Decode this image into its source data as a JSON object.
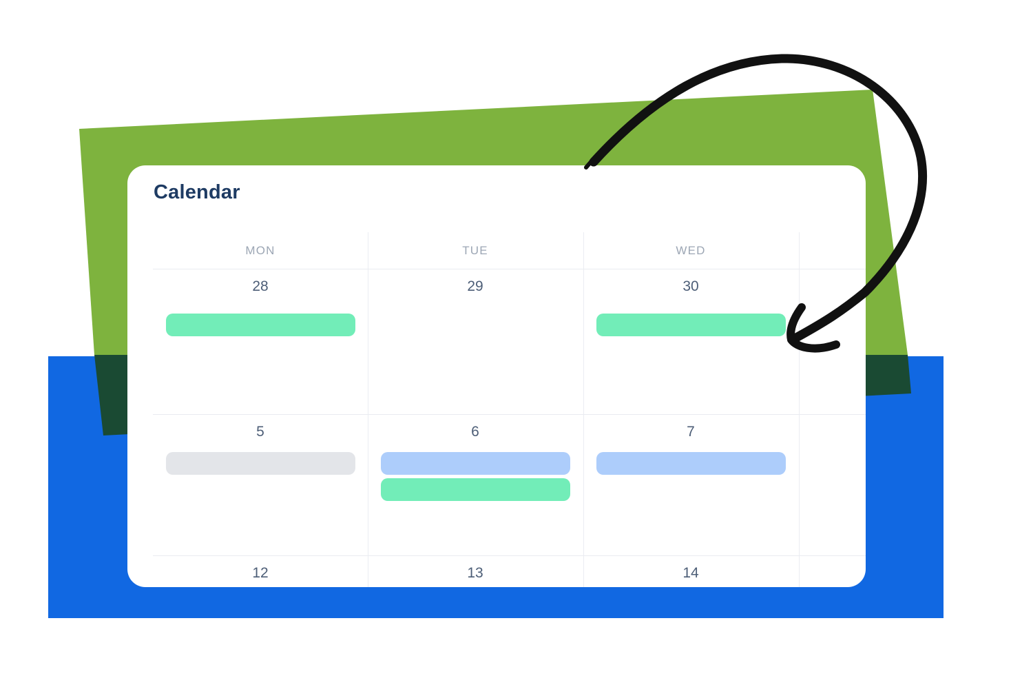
{
  "card": {
    "title": "Calendar"
  },
  "calendar": {
    "day_headers": [
      "MON",
      "TUE",
      "WED"
    ],
    "weeks": [
      {
        "days": [
          {
            "date": "28",
            "events": [
              "mint"
            ]
          },
          {
            "date": "29",
            "events": []
          },
          {
            "date": "30",
            "events": [
              "mint"
            ]
          }
        ]
      },
      {
        "days": [
          {
            "date": "5",
            "events": [
              "gray"
            ]
          },
          {
            "date": "6",
            "events": [
              "blue",
              "mint"
            ]
          },
          {
            "date": "7",
            "events": [
              "blue"
            ]
          }
        ]
      },
      {
        "days": [
          {
            "date": "12",
            "events": []
          },
          {
            "date": "13",
            "events": []
          },
          {
            "date": "14",
            "events": []
          }
        ]
      }
    ]
  },
  "colors": {
    "event_mint": "#72edb8",
    "event_blue": "#adcdfb",
    "event_gray": "#e3e5e9",
    "bg_green": "#7eb33e",
    "bg_dark_green": "#1a4a33",
    "bg_blue": "#1168e2",
    "title_navy": "#1e3b63",
    "day_header_gray": "#9ca6b4",
    "date_slate": "#4d5e77",
    "arrow_black": "#111111"
  }
}
